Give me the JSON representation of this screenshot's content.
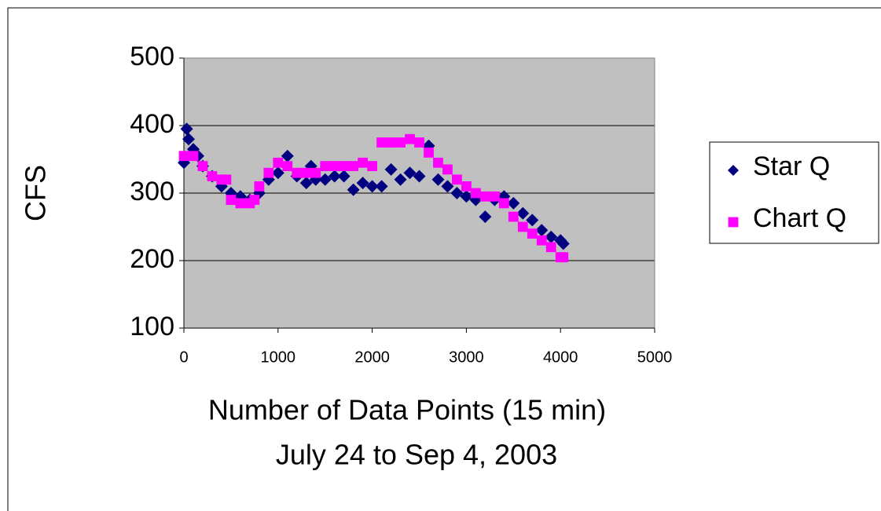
{
  "chart_data": {
    "type": "scatter",
    "ylabel": "CFS",
    "xlabel": [
      "Number of Data Points (15 min)",
      "July 24 to Sep 4, 2003"
    ],
    "xlim": [
      0,
      5000
    ],
    "xticks": [
      0,
      1000,
      2000,
      3000,
      4000,
      5000
    ],
    "ylim": [
      100,
      500
    ],
    "yticks": [
      100,
      200,
      300,
      400,
      500
    ],
    "grid": true,
    "legend": "right",
    "series": [
      {
        "name": "Star Q",
        "color": "#000080",
        "marker": "diamond",
        "x": [
          0,
          30,
          50,
          100,
          150,
          200,
          300,
          400,
          500,
          600,
          700,
          800,
          900,
          1000,
          1100,
          1200,
          1300,
          1350,
          1400,
          1500,
          1600,
          1700,
          1800,
          1900,
          2000,
          2100,
          2200,
          2300,
          2400,
          2500,
          2600,
          2700,
          2800,
          2900,
          3000,
          3100,
          3200,
          3300,
          3400,
          3500,
          3600,
          3700,
          3800,
          3900,
          4000,
          4030
        ],
        "values": [
          345,
          395,
          380,
          365,
          355,
          340,
          325,
          310,
          300,
          295,
          290,
          300,
          320,
          330,
          355,
          325,
          315,
          340,
          320,
          320,
          325,
          325,
          305,
          315,
          310,
          310,
          335,
          320,
          330,
          325,
          370,
          320,
          310,
          300,
          295,
          290,
          265,
          290,
          295,
          285,
          270,
          260,
          245,
          235,
          230,
          225
        ]
      },
      {
        "name": "Chart Q",
        "color": "#ff00ff",
        "marker": "square",
        "x": [
          0,
          100,
          200,
          300,
          400,
          450,
          500,
          600,
          700,
          750,
          800,
          900,
          1000,
          1100,
          1200,
          1300,
          1400,
          1500,
          1600,
          1700,
          1800,
          1900,
          2000,
          2100,
          2200,
          2300,
          2400,
          2500,
          2600,
          2700,
          2800,
          2900,
          3000,
          3100,
          3200,
          3300,
          3400,
          3500,
          3600,
          3700,
          3800,
          3900,
          4000,
          4030
        ],
        "values": [
          355,
          355,
          340,
          325,
          320,
          320,
          290,
          285,
          285,
          290,
          310,
          330,
          345,
          340,
          330,
          330,
          330,
          340,
          340,
          340,
          340,
          345,
          340,
          375,
          375,
          375,
          380,
          375,
          360,
          345,
          335,
          320,
          310,
          300,
          295,
          295,
          285,
          265,
          250,
          240,
          230,
          220,
          205,
          205
        ]
      }
    ]
  }
}
